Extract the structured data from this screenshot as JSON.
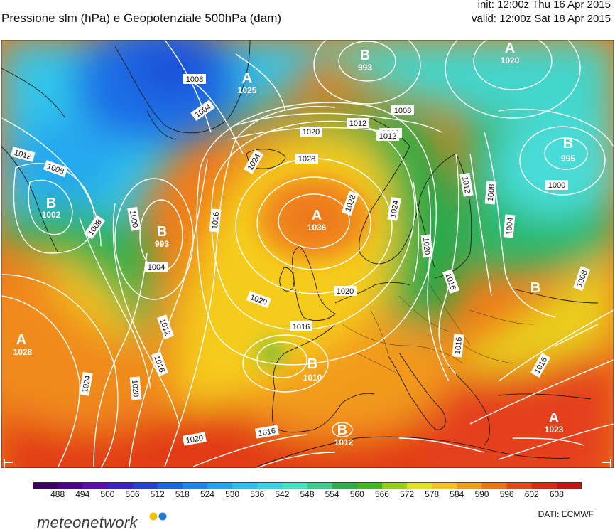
{
  "header": {
    "title": "Pressione slm (hPa) e Geopotenziale 500hPa (dam)",
    "init": "init: 12:00z Thu 16 Apr 2015",
    "valid": "valid: 12:00z Sat 18 Apr 2015"
  },
  "centers": [
    {
      "letter": "A",
      "value": "1025"
    },
    {
      "letter": "B",
      "value": "993"
    },
    {
      "letter": "A",
      "value": "1020"
    },
    {
      "letter": "B",
      "value": "995"
    },
    {
      "letter": "B",
      "value": "1002"
    },
    {
      "letter": "B",
      "value": "993"
    },
    {
      "letter": "A",
      "value": "1036"
    },
    {
      "letter": "A",
      "value": "1028"
    },
    {
      "letter": "B",
      "value": "1010"
    },
    {
      "letter": "B",
      "value": "1012"
    },
    {
      "letter": "A",
      "value": "1023"
    },
    {
      "letter": "B",
      "value": ""
    }
  ],
  "isobar_labels": [
    "1008",
    "1004",
    "1012",
    "1008",
    "1020",
    "1028",
    "1024",
    "1012",
    "1016",
    "1000",
    "1004",
    "1008",
    "1016",
    "1028",
    "1024",
    "1020",
    "1012",
    "1008",
    "1000",
    "1004",
    "1008",
    "1020",
    "1016",
    "1024",
    "1020",
    "1016",
    "1012",
    "1016",
    "1020",
    "1016",
    "1016",
    "1016",
    "1020",
    "1008",
    "1012"
  ],
  "colorbar": {
    "ticks": [
      "488",
      "494",
      "500",
      "506",
      "512",
      "518",
      "524",
      "530",
      "536",
      "542",
      "548",
      "554",
      "560",
      "566",
      "572",
      "578",
      "584",
      "590",
      "596",
      "602",
      "608"
    ],
    "colors": [
      "#3a0060",
      "#4c0090",
      "#5a0fb0",
      "#3a20c8",
      "#2440d8",
      "#1a64e6",
      "#1a86ee",
      "#22a4f2",
      "#2cc0f0",
      "#34d6e0",
      "#40e6c2",
      "#3ccc8c",
      "#2cb04c",
      "#44b820",
      "#96d014",
      "#e2e21a",
      "#f5c41a",
      "#f59e18",
      "#ee7414",
      "#e54a14",
      "#db2a14",
      "#c81414"
    ]
  },
  "source": "DATI:  ECMWF",
  "brand": "meteonetwork"
}
